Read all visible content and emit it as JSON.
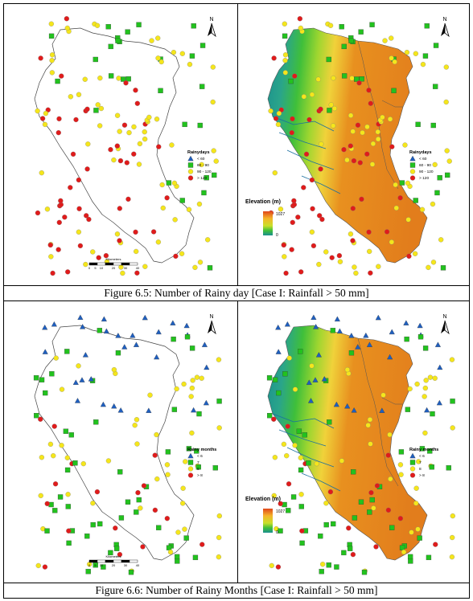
{
  "figures": [
    {
      "caption": "Figure 6.5: Number of Rainy day [Case I: Rainfall > 50 mm]",
      "left_legend": {
        "title": "Rainydays",
        "items": [
          {
            "symbol": "triangle",
            "color": "#1f5fbf",
            "label": "< 60"
          },
          {
            "symbol": "square",
            "color": "#22c21e",
            "label": "60 - 90"
          },
          {
            "symbol": "circle",
            "color": "#f5e61b",
            "label": "90 - 120"
          },
          {
            "symbol": "circle",
            "color": "#e01b1b",
            "label": "> 120"
          }
        ]
      },
      "right_legend": {
        "title": "Rainydays",
        "items": [
          {
            "symbol": "triangle",
            "color": "#1f5fbf",
            "label": "< 60"
          },
          {
            "symbol": "square",
            "color": "#22c21e",
            "label": "60 - 90"
          },
          {
            "symbol": "circle",
            "color": "#f5e61b",
            "label": "90 - 120"
          },
          {
            "symbol": "circle",
            "color": "#e01b1b",
            "label": "> 120"
          }
        ]
      },
      "elevation": {
        "title": "Elevation (m)",
        "max": "1027",
        "min": "0"
      },
      "scalebar": {
        "title": "Kilometers",
        "ticks": [
          "0",
          "5",
          "10",
          "20",
          "30",
          "40"
        ]
      },
      "north": "N"
    },
    {
      "caption": "Figure 6.6: Number of Rainy Months [Case I: Rainfall > 50 mm]",
      "left_legend": {
        "title": "Rainy months",
        "items": [
          {
            "symbol": "triangle",
            "color": "#1f5fbf",
            "label": "< 6"
          },
          {
            "symbol": "square",
            "color": "#22c21e",
            "label": "7"
          },
          {
            "symbol": "circle",
            "color": "#f5e61b",
            "label": "8"
          },
          {
            "symbol": "circle",
            "color": "#e01b1b",
            "label": "> 8"
          }
        ]
      },
      "right_legend": {
        "title": "Rainy months",
        "items": [
          {
            "symbol": "triangle",
            "color": "#1f5fbf",
            "label": "< 6"
          },
          {
            "symbol": "square",
            "color": "#22c21e",
            "label": "7"
          },
          {
            "symbol": "circle",
            "color": "#f5e61b",
            "label": "8"
          },
          {
            "symbol": "circle",
            "color": "#e01b1b",
            "label": "> 8"
          }
        ]
      },
      "elevation": {
        "title": "Elevation (m)",
        "max": "1027",
        "min": "0"
      },
      "scalebar": {
        "title": "Kilometers",
        "ticks": [
          "0",
          "5",
          "10",
          "20",
          "30",
          "40"
        ]
      },
      "north": "N"
    }
  ],
  "colors": {
    "blue": "#1f5fbf",
    "green": "#22c21e",
    "yellow": "#f5e61b",
    "red": "#e01b1b",
    "orange_terrain": "#e8901f",
    "coastal_green": "#3fbf3a",
    "sea_teal": "#1a8f8f"
  }
}
